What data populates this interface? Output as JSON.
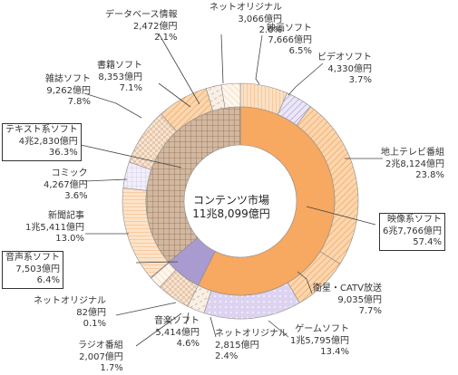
{
  "chart_data": {
    "type": "pie",
    "title": "コンテンツ市場",
    "total": "11兆8,099億円",
    "unit": "億円",
    "inner_ring": [
      {
        "name": "映像系ソフト",
        "amount": "6兆7,766億円",
        "value": 67766,
        "share": "57.4%",
        "color": "#f7a861"
      },
      {
        "name": "音声系ソフト",
        "amount": "7,503億円",
        "value": 7503,
        "share": "6.4%",
        "color": "#a99bd0"
      },
      {
        "name": "テキスト系ソフト",
        "amount": "4兆2,830億円",
        "value": 42830,
        "share": "36.3%",
        "color": "#c79c76"
      }
    ],
    "outer_ring": [
      {
        "name": "映画ソフト",
        "amount": "7,666億円",
        "value": 7666,
        "share": "6.5%",
        "color": "#f9c89a"
      },
      {
        "name": "ビデオソフト",
        "amount": "4,330億円",
        "value": 4330,
        "share": "3.7%",
        "color": "#cbc3e6"
      },
      {
        "name": "地上テレビ番組",
        "amount": "2兆8,124億円",
        "value": 28124,
        "share": "23.8%",
        "color": "#c9a88a"
      },
      {
        "name": "衛星・CATV放送",
        "amount": "9,035億円",
        "value": 9035,
        "share": "7.7%",
        "color": "#fbd3a8"
      },
      {
        "name": "ゲームソフト",
        "amount": "1兆5,795億円",
        "value": 15795,
        "share": "13.4%",
        "color": "#d8cdee"
      },
      {
        "name": "ネットオリジナル",
        "amount": "2,815億円",
        "value": 2815,
        "share": "2.4%",
        "color": "#f3e7d6"
      },
      {
        "name": "音楽ソフト",
        "amount": "5,414億円",
        "value": 5414,
        "share": "4.6%",
        "color": "#fce0c4"
      },
      {
        "name": "ラジオ番組",
        "amount": "2,007億円",
        "value": 2007,
        "share": "1.7%",
        "color": "#fbe9d6"
      },
      {
        "name": "ネットオリジナル",
        "amount": "82億円",
        "value": 82,
        "share": "0.1%",
        "color": "#ffffff"
      },
      {
        "name": "新聞記事",
        "amount": "1兆5,411億円",
        "value": 15411,
        "share": "13.0%",
        "color": "#fcdcbd"
      },
      {
        "name": "コミック",
        "amount": "4,267億円",
        "value": 4267,
        "share": "3.6%",
        "color": "#ece5f6"
      },
      {
        "name": "雑誌ソフト",
        "amount": "9,262億円",
        "value": 9262,
        "share": "7.8%",
        "color": "#f5e2cf"
      },
      {
        "name": "書籍ソフト",
        "amount": "8,353億円",
        "value": 8353,
        "share": "7.1%",
        "color": "#f7d7b4"
      },
      {
        "name": "データベース情報",
        "amount": "2,472億円",
        "value": 2472,
        "share": "2.1%",
        "color": "#efe6dd"
      },
      {
        "name": "ネットオリジナル",
        "amount": "3,066億円",
        "value": 3066,
        "share": "2.6%",
        "color": "#f6eee8"
      }
    ]
  }
}
